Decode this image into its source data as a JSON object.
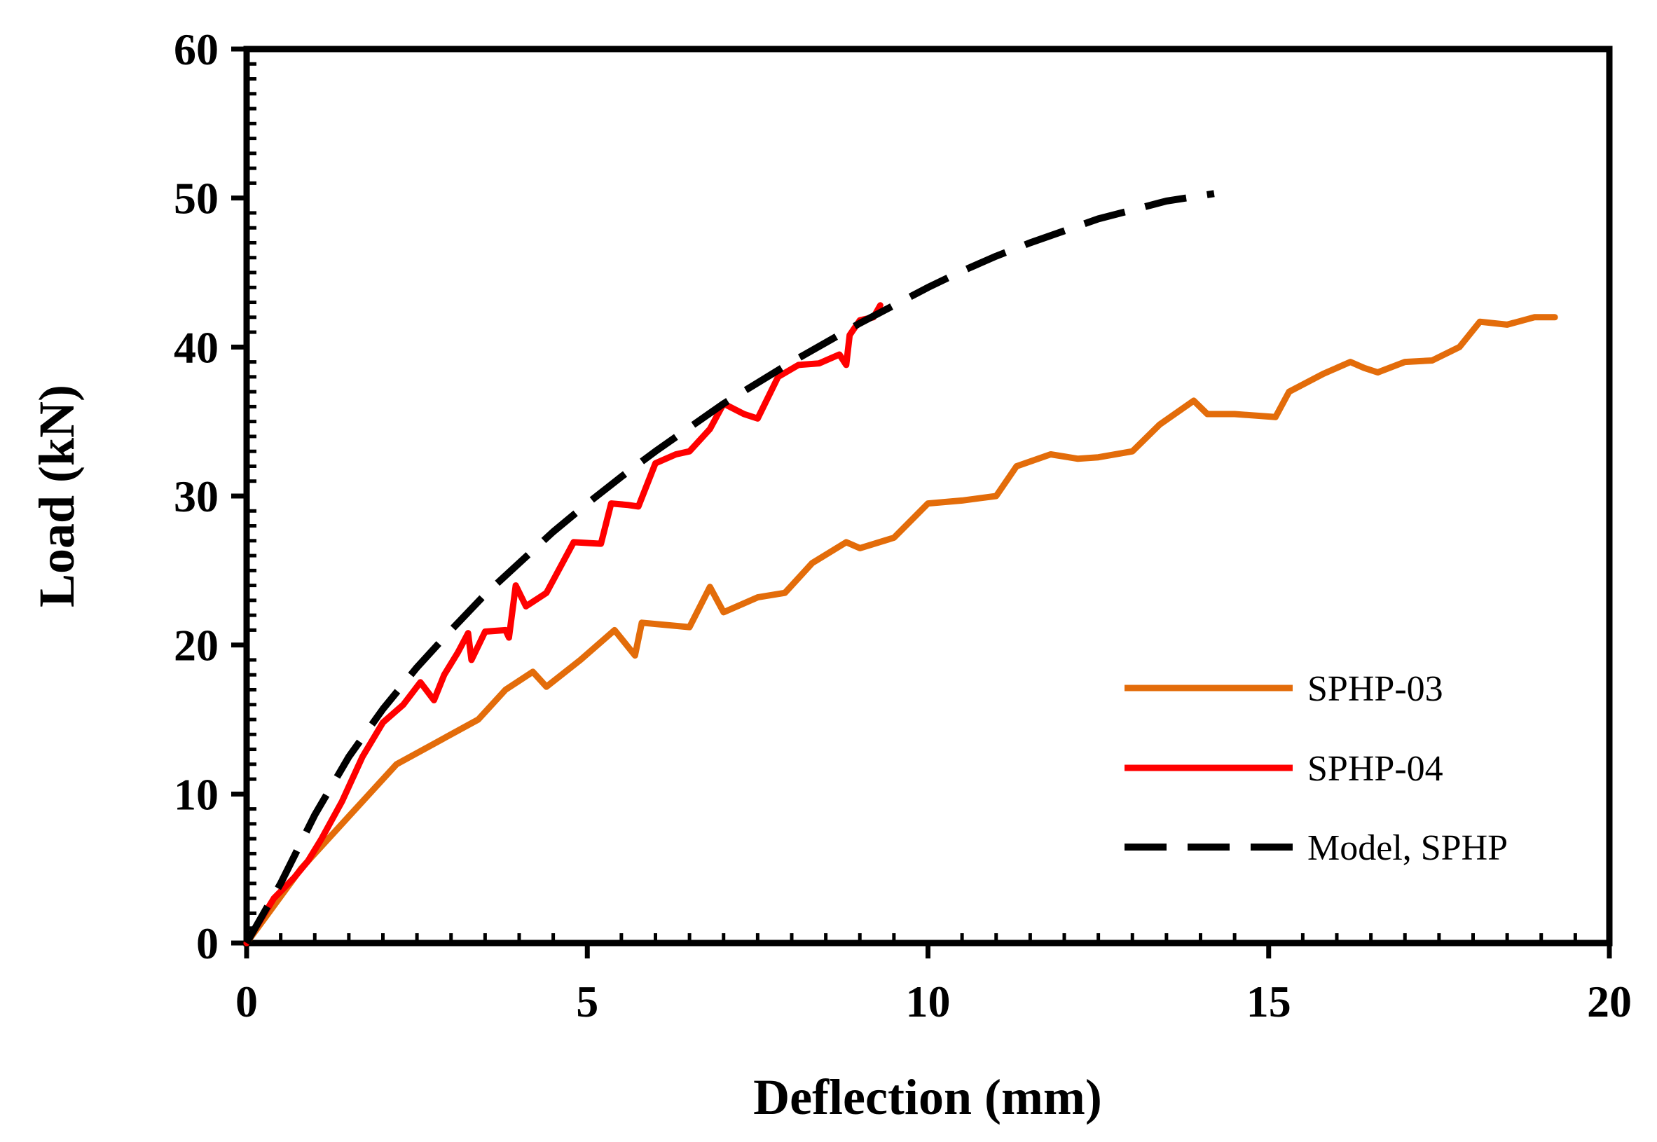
{
  "chart_data": {
    "type": "line",
    "title": "",
    "xlabel": "Deflection (mm)",
    "ylabel": "Load (kN)",
    "xlim": [
      0,
      20
    ],
    "ylim": [
      0,
      60
    ],
    "x_ticks": [
      "0",
      "5",
      "10",
      "15",
      "20"
    ],
    "y_ticks": [
      "0",
      "10",
      "20",
      "30",
      "40",
      "50",
      "60"
    ],
    "grid": false,
    "legend_position": "lower-right",
    "series": [
      {
        "name": "SPHP-03",
        "color": "#E36C0A",
        "style": "solid",
        "points": [
          [
            0,
            0
          ],
          [
            0.8,
            5
          ],
          [
            1.5,
            8.5
          ],
          [
            2.2,
            12
          ],
          [
            2.8,
            13.5
          ],
          [
            3.4,
            15
          ],
          [
            3.8,
            17
          ],
          [
            4.2,
            18.2
          ],
          [
            4.4,
            17.2
          ],
          [
            4.9,
            19
          ],
          [
            5.4,
            21
          ],
          [
            5.7,
            19.3
          ],
          [
            5.8,
            21.5
          ],
          [
            6.5,
            21.2
          ],
          [
            6.8,
            23.9
          ],
          [
            7.0,
            22.2
          ],
          [
            7.5,
            23.2
          ],
          [
            7.9,
            23.5
          ],
          [
            8.3,
            25.5
          ],
          [
            8.8,
            26.9
          ],
          [
            9.0,
            26.5
          ],
          [
            9.5,
            27.2
          ],
          [
            10.0,
            29.5
          ],
          [
            10.5,
            29.7
          ],
          [
            11.0,
            30
          ],
          [
            11.3,
            32
          ],
          [
            11.8,
            32.8
          ],
          [
            12.2,
            32.5
          ],
          [
            12.5,
            32.6
          ],
          [
            13.0,
            33
          ],
          [
            13.4,
            34.8
          ],
          [
            13.9,
            36.4
          ],
          [
            14.1,
            35.5
          ],
          [
            14.5,
            35.5
          ],
          [
            15.1,
            35.3
          ],
          [
            15.3,
            37
          ],
          [
            15.8,
            38.2
          ],
          [
            16.2,
            39
          ],
          [
            16.4,
            38.6
          ],
          [
            16.6,
            38.3
          ],
          [
            17.0,
            39
          ],
          [
            17.4,
            39.1
          ],
          [
            17.8,
            40
          ],
          [
            18.1,
            41.7
          ],
          [
            18.5,
            41.5
          ],
          [
            18.9,
            42
          ],
          [
            19.2,
            42
          ]
        ]
      },
      {
        "name": "SPHP-04",
        "color": "#FF0000",
        "style": "solid",
        "points": [
          [
            0,
            0
          ],
          [
            0.4,
            3
          ],
          [
            0.7,
            4.4
          ],
          [
            0.9,
            5.5
          ],
          [
            1.1,
            7
          ],
          [
            1.4,
            9.5
          ],
          [
            1.7,
            12.5
          ],
          [
            2.0,
            14.8
          ],
          [
            2.3,
            16
          ],
          [
            2.55,
            17.5
          ],
          [
            2.75,
            16.3
          ],
          [
            2.9,
            18
          ],
          [
            3.1,
            19.5
          ],
          [
            3.25,
            20.8
          ],
          [
            3.3,
            19
          ],
          [
            3.5,
            20.9
          ],
          [
            3.8,
            21
          ],
          [
            3.85,
            20.5
          ],
          [
            3.95,
            24
          ],
          [
            4.1,
            22.6
          ],
          [
            4.4,
            23.5
          ],
          [
            4.8,
            26.9
          ],
          [
            5.2,
            26.8
          ],
          [
            5.35,
            29.5
          ],
          [
            5.6,
            29.4
          ],
          [
            5.75,
            29.3
          ],
          [
            6.0,
            32.2
          ],
          [
            6.3,
            32.8
          ],
          [
            6.5,
            33
          ],
          [
            6.8,
            34.5
          ],
          [
            7.0,
            36.2
          ],
          [
            7.3,
            35.5
          ],
          [
            7.5,
            35.2
          ],
          [
            7.8,
            38
          ],
          [
            8.1,
            38.8
          ],
          [
            8.4,
            38.9
          ],
          [
            8.7,
            39.5
          ],
          [
            8.8,
            38.8
          ],
          [
            8.85,
            40.8
          ],
          [
            9.0,
            41.8
          ],
          [
            9.2,
            42
          ],
          [
            9.3,
            42.8
          ]
        ]
      },
      {
        "name": "Model, SPHP",
        "color": "#000000",
        "style": "dashed",
        "points": [
          [
            0,
            0
          ],
          [
            0.5,
            4
          ],
          [
            1,
            8.6
          ],
          [
            1.5,
            12.5
          ],
          [
            2,
            15.7
          ],
          [
            2.5,
            18.5
          ],
          [
            3,
            21
          ],
          [
            3.5,
            23.4
          ],
          [
            4,
            25.5
          ],
          [
            4.5,
            27.6
          ],
          [
            5,
            29.5
          ],
          [
            5.5,
            31.3
          ],
          [
            6,
            33
          ],
          [
            6.5,
            34.6
          ],
          [
            7,
            36.2
          ],
          [
            7.5,
            37.6
          ],
          [
            8,
            39
          ],
          [
            8.5,
            40.3
          ],
          [
            9,
            41.6
          ],
          [
            9.5,
            42.8
          ],
          [
            10,
            44
          ],
          [
            10.5,
            45.1
          ],
          [
            11,
            46.1
          ],
          [
            11.5,
            47
          ],
          [
            12,
            47.8
          ],
          [
            12.5,
            48.6
          ],
          [
            13,
            49.2
          ],
          [
            13.5,
            49.8
          ],
          [
            14.2,
            50.3
          ]
        ]
      }
    ]
  }
}
